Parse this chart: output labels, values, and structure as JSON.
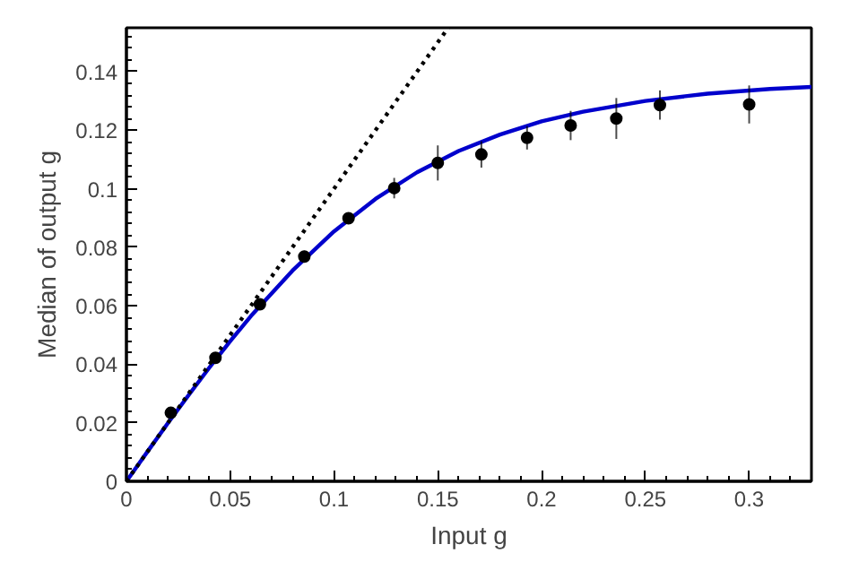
{
  "chart_data": {
    "type": "scatter",
    "xlabel": "Input g",
    "ylabel": "Median of output g",
    "xlim": [
      0,
      0.33
    ],
    "ylim": [
      0,
      0.155
    ],
    "xticks": [
      0,
      0.05,
      0.1,
      0.15,
      0.2,
      0.25,
      0.3
    ],
    "yticks": [
      0,
      0.02,
      0.04,
      0.06,
      0.08,
      0.1,
      0.12,
      0.14
    ],
    "grid": false,
    "series": [
      {
        "color": "#000000",
        "marker": "circle",
        "x": [
          0.0214,
          0.0429,
          0.0643,
          0.0857,
          0.107,
          0.129,
          0.15,
          0.171,
          0.193,
          0.214,
          0.236,
          0.257,
          0.3
        ],
        "values": [
          0.0234,
          0.0422,
          0.0605,
          0.0768,
          0.0899,
          0.1002,
          0.1088,
          0.1117,
          0.1174,
          0.1216,
          0.124,
          0.1286,
          0.1288
        ],
        "errors": [
          0.001,
          0.001,
          0.001,
          0.002,
          0.002,
          0.0035,
          0.006,
          0.0045,
          0.004,
          0.005,
          0.007,
          0.005,
          0.0065
        ]
      },
      {
        "type": "line",
        "color": "#0000cc",
        "line_style": "solid",
        "marker": "none",
        "x": [
          0,
          0.01,
          0.02,
          0.03,
          0.04,
          0.05,
          0.06,
          0.08,
          0.1,
          0.12,
          0.14,
          0.16,
          0.18,
          0.2,
          0.22,
          0.25,
          0.28,
          0.31,
          0.33
        ],
        "values": [
          0,
          0.01,
          0.0199,
          0.0295,
          0.0389,
          0.0479,
          0.0565,
          0.072,
          0.0854,
          0.0965,
          0.1056,
          0.1129,
          0.1185,
          0.123,
          0.1263,
          0.13,
          0.1325,
          0.1341,
          0.1348
        ]
      },
      {
        "type": "line",
        "color": "#000000",
        "line_style": "dotted",
        "marker": "none",
        "x": [
          0,
          0.155
        ],
        "values": [
          0,
          0.155
        ]
      }
    ]
  }
}
